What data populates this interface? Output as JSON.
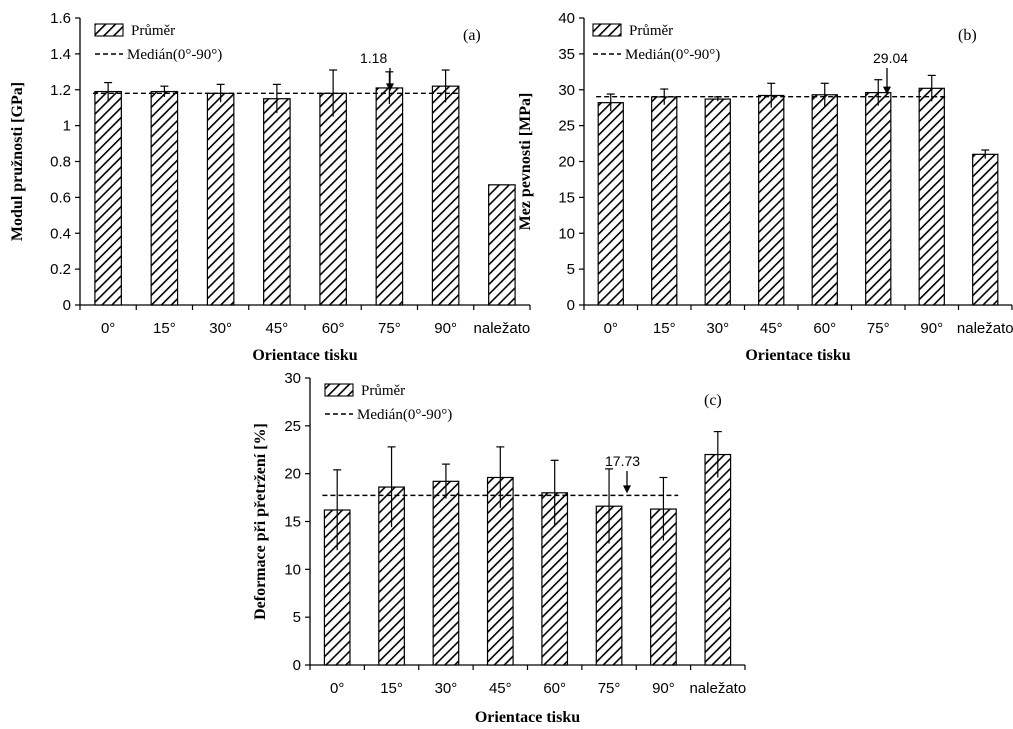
{
  "chart_data": [
    {
      "type": "bar",
      "panel": "(a)",
      "categories": [
        "0°",
        "15°",
        "30°",
        "45°",
        "60°",
        "75°",
        "90°",
        "naležato"
      ],
      "series": [
        {
          "name": "Průměr",
          "values": [
            1.19,
            1.19,
            1.18,
            1.15,
            1.18,
            1.21,
            1.22,
            0.67
          ]
        }
      ],
      "errors": [
        0.05,
        0.03,
        0.05,
        0.08,
        0.13,
        0.09,
        0.09,
        0.0
      ],
      "median": {
        "label": "Medián(0°-90°)",
        "value": 1.18,
        "annotation": "1.18"
      },
      "xlabel": "Orientace tisku",
      "ylabel": "Modul pružnosti [GPa]",
      "ylim": [
        0,
        1.6
      ],
      "yticks": [
        "0",
        "0.2",
        "0.4",
        "0.6",
        "0.8",
        "1",
        "1.2",
        "1.4",
        "1.6"
      ],
      "legend": "top-left"
    },
    {
      "type": "bar",
      "panel": "(b)",
      "categories": [
        "0°",
        "15°",
        "30°",
        "45°",
        "60°",
        "75°",
        "90°",
        "naležato"
      ],
      "series": [
        {
          "name": "Průměr",
          "values": [
            28.2,
            29.0,
            28.7,
            29.2,
            29.3,
            29.6,
            30.2,
            21.0
          ]
        }
      ],
      "errors": [
        1.2,
        1.1,
        0.3,
        1.7,
        1.6,
        1.8,
        1.8,
        0.6
      ],
      "median": {
        "label": "Medián(0°-90°)",
        "value": 29.04,
        "annotation": "29.04"
      },
      "xlabel": "Orientace tisku",
      "ylabel": "Mez pevnosti [MPa]",
      "ylim": [
        0,
        40
      ],
      "yticks": [
        "0",
        "5",
        "10",
        "15",
        "20",
        "25",
        "30",
        "35",
        "40"
      ],
      "legend": "top-left"
    },
    {
      "type": "bar",
      "panel": "(c)",
      "categories": [
        "0°",
        "15°",
        "30°",
        "45°",
        "60°",
        "75°",
        "90°",
        "naležato"
      ],
      "series": [
        {
          "name": "Průměr",
          "values": [
            16.2,
            18.6,
            19.2,
            19.6,
            18.0,
            16.6,
            16.3,
            22.0
          ]
        }
      ],
      "errors": [
        4.2,
        4.2,
        1.8,
        3.2,
        3.4,
        3.9,
        3.3,
        2.4
      ],
      "median": {
        "label": "Medián(0°-90°)",
        "value": 17.73,
        "annotation": "17.73"
      },
      "xlabel": "Orientace tisku",
      "ylabel": "Deformace při přetržení [%]",
      "ylim": [
        0,
        30
      ],
      "yticks": [
        "0",
        "5",
        "10",
        "15",
        "20",
        "25",
        "30"
      ],
      "legend": "top-left"
    }
  ]
}
